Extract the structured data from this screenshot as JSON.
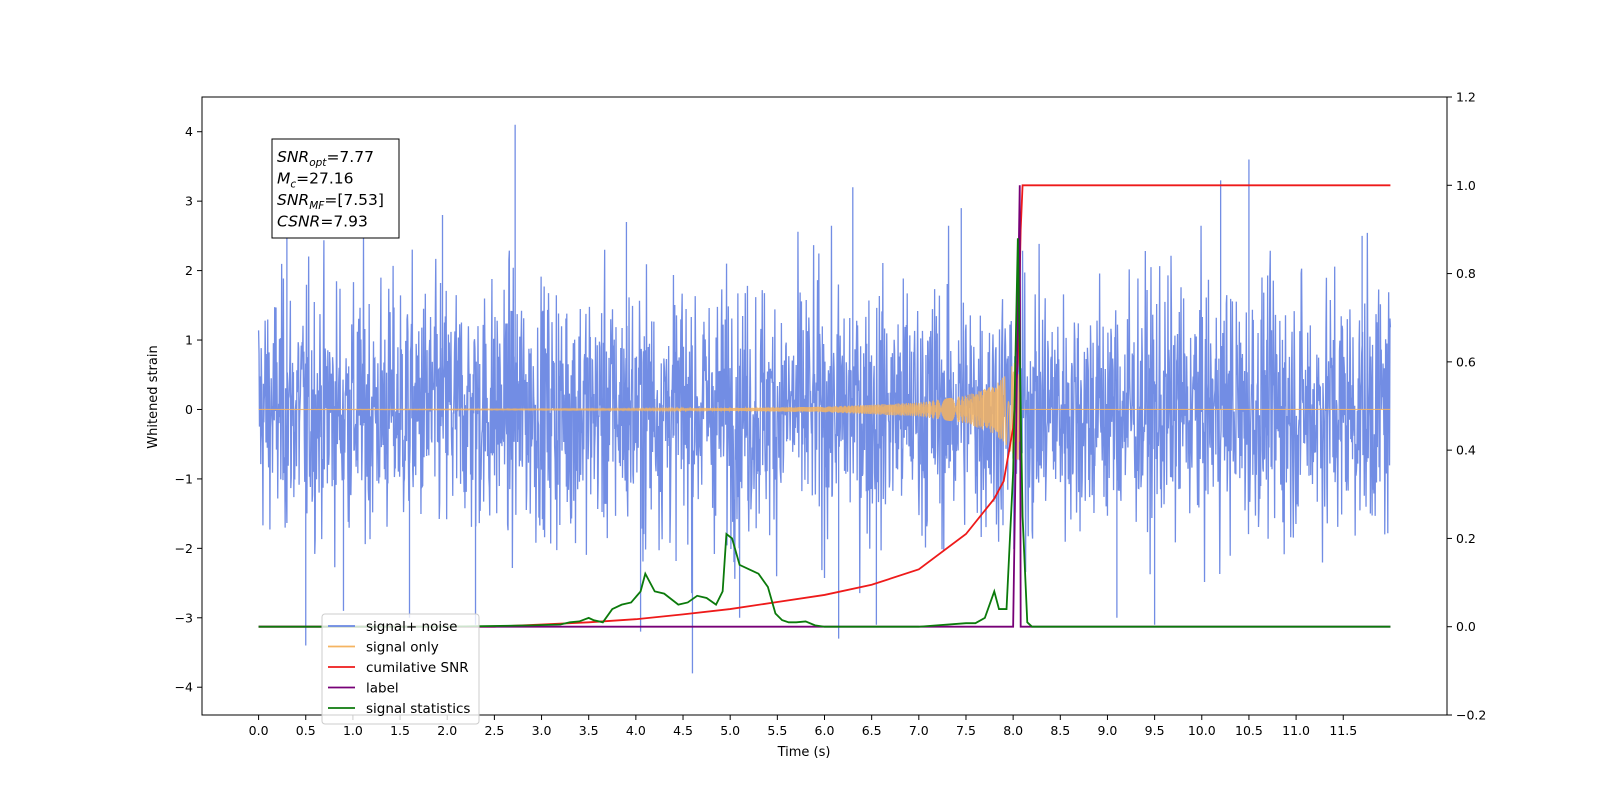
{
  "chart_data": {
    "type": "line",
    "xlabel": "Time (s)",
    "ylabel": "Whitened strain",
    "xlim": [
      -0.6,
      12.6
    ],
    "ylim_left": [
      -4.4,
      4.5
    ],
    "ylim_right": [
      -0.2,
      1.2
    ],
    "x_ticks": [
      "0.0",
      "0.5",
      "1.0",
      "1.5",
      "2.0",
      "2.5",
      "3.0",
      "3.5",
      "4.0",
      "4.5",
      "5.0",
      "5.5",
      "6.0",
      "6.5",
      "7.0",
      "7.5",
      "8.0",
      "8.5",
      "9.0",
      "9.5",
      "10.0",
      "10.5",
      "11.0",
      "11.5"
    ],
    "y_ticks_left": [
      "−4",
      "−3",
      "−2",
      "−1",
      "0",
      "1",
      "2",
      "3",
      "4"
    ],
    "y_ticks_right": [
      "−0.2",
      "0.0",
      "0.2",
      "0.4",
      "0.6",
      "0.8",
      "1.0",
      "1.2"
    ],
    "legend_position": "lower-left",
    "annotation": {
      "lines": [
        {
          "main": "SNR",
          "sub": "opt",
          "rest": "=7.77"
        },
        {
          "main": "M",
          "sub": "c",
          "rest": "=27.16"
        },
        {
          "main": "SNR",
          "sub": "MF",
          "rest": "=[7.53]"
        },
        {
          "main": "CSNR",
          "sub": "",
          "rest": "=7.93"
        }
      ]
    },
    "series": [
      {
        "name": "signal+ noise",
        "axis": "left",
        "color": "#6a87e3",
        "kind": "noise_band",
        "x_range": [
          0.0,
          12.0
        ],
        "envelope_upper": {
          "x": [
            0,
            1,
            2,
            3,
            4,
            5,
            6,
            7,
            7.8,
            8.0,
            8.1,
            9,
            10,
            11,
            12
          ],
          "y": [
            2.2,
            2.3,
            2.3,
            2.3,
            2.3,
            2.3,
            2.3,
            2.3,
            2.3,
            2.6,
            2.3,
            2.3,
            2.3,
            2.3,
            2.3
          ]
        },
        "envelope_lower": {
          "x": [
            0,
            1,
            2,
            3,
            4,
            5,
            6,
            7,
            7.8,
            8.0,
            8.1,
            9,
            10,
            11,
            12
          ],
          "y": [
            -2.2,
            -2.3,
            -2.3,
            -2.3,
            -2.3,
            -2.3,
            -2.3,
            -2.3,
            -2.3,
            -2.6,
            -2.3,
            -2.3,
            -2.3,
            -2.3,
            -2.3
          ]
        },
        "spikes": [
          [
            0.5,
            -3.4
          ],
          [
            0.9,
            -2.9
          ],
          [
            1.6,
            -3.0
          ],
          [
            2.3,
            -3.1
          ],
          [
            2.72,
            4.1
          ],
          [
            4.05,
            -3.2
          ],
          [
            4.6,
            -3.8
          ],
          [
            5.1,
            -3.0
          ],
          [
            6.15,
            -3.3
          ],
          [
            6.55,
            -3.1
          ],
          [
            9.1,
            -3.0
          ],
          [
            9.5,
            -3.1
          ],
          [
            10.5,
            3.6
          ],
          [
            10.2,
            3.3
          ],
          [
            6.3,
            3.2
          ],
          [
            0.3,
            2.8
          ],
          [
            1.95,
            2.8
          ],
          [
            3.9,
            2.7
          ],
          [
            7.45,
            2.9
          ],
          [
            11.7,
            2.5
          ]
        ]
      },
      {
        "name": "signal only",
        "axis": "left",
        "color": "#f5b461",
        "kind": "chirp",
        "x_range": [
          0.0,
          12.0
        ],
        "merger_time": 8.07,
        "amplitude": {
          "x": [
            0,
            4,
            5,
            6,
            7,
            7.5,
            7.8,
            7.95,
            8.03,
            8.07,
            8.08
          ],
          "y": [
            0.0,
            0.01,
            0.02,
            0.04,
            0.1,
            0.2,
            0.35,
            0.55,
            0.75,
            0.7,
            0.0
          ]
        }
      },
      {
        "name": "cumilative SNR",
        "axis": "right",
        "color": "#ee1a1a",
        "x": [
          0.0,
          2.0,
          2.5,
          3.0,
          3.5,
          4.0,
          4.5,
          5.0,
          5.5,
          6.0,
          6.5,
          7.0,
          7.5,
          7.8,
          7.9,
          8.0,
          8.05,
          8.08,
          8.1,
          12.0
        ],
        "y": [
          0.0,
          0.0,
          0.0,
          0.005,
          0.01,
          0.017,
          0.028,
          0.04,
          0.056,
          0.072,
          0.095,
          0.13,
          0.21,
          0.29,
          0.33,
          0.45,
          0.6,
          0.9,
          1.0,
          1.0
        ]
      },
      {
        "name": "label",
        "axis": "right",
        "color": "#770077",
        "x": [
          0.0,
          8.0,
          8.07,
          8.08,
          12.0
        ],
        "y": [
          0.0,
          0.0,
          1.0,
          0.0,
          0.0
        ]
      },
      {
        "name": "signal statistics",
        "axis": "right",
        "color": "#0b7a0b",
        "x": [
          0.0,
          2.0,
          2.9,
          3.2,
          3.3,
          3.4,
          3.5,
          3.55,
          3.65,
          3.75,
          3.85,
          3.95,
          4.05,
          4.1,
          4.2,
          4.3,
          4.45,
          4.55,
          4.65,
          4.75,
          4.85,
          4.92,
          4.96,
          5.02,
          5.1,
          5.2,
          5.3,
          5.4,
          5.48,
          5.55,
          5.62,
          5.7,
          5.8,
          5.9,
          6.0,
          7.0,
          7.5,
          7.6,
          7.7,
          7.8,
          7.85,
          7.93,
          8.0,
          8.05,
          8.1,
          8.15,
          8.2,
          12.0
        ],
        "y": [
          0.0,
          0.0,
          0.003,
          0.005,
          0.01,
          0.012,
          0.02,
          0.015,
          0.01,
          0.04,
          0.05,
          0.055,
          0.08,
          0.12,
          0.08,
          0.075,
          0.05,
          0.055,
          0.07,
          0.065,
          0.05,
          0.08,
          0.21,
          0.2,
          0.14,
          0.13,
          0.12,
          0.09,
          0.03,
          0.015,
          0.01,
          0.01,
          0.012,
          0.003,
          0.0,
          0.0,
          0.008,
          0.008,
          0.02,
          0.08,
          0.04,
          0.04,
          0.35,
          0.88,
          0.25,
          0.01,
          0.0,
          0.0
        ]
      }
    ]
  }
}
